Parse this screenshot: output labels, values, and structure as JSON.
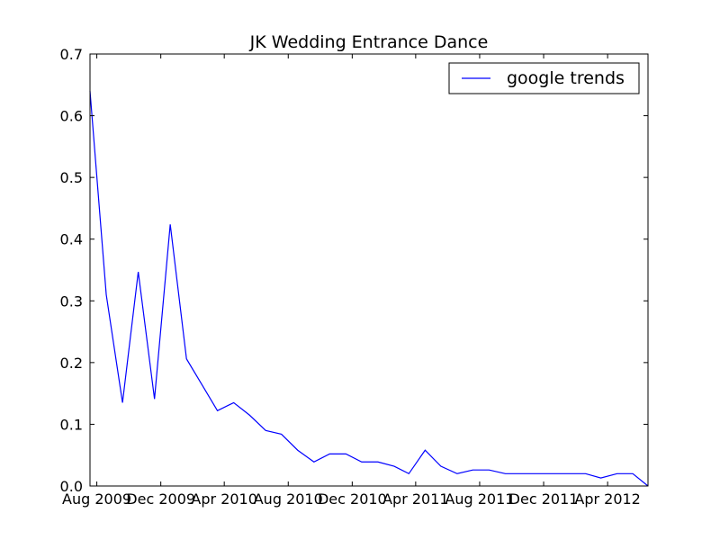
{
  "chart_data": {
    "type": "line",
    "title": "JK Wedding Entrance Dance",
    "xlabel": "",
    "ylabel": "",
    "x_range": [
      "2009-07-19",
      "2012-06-17"
    ],
    "ylim": [
      0.0,
      0.7
    ],
    "y_ticks": [
      0.0,
      0.1,
      0.2,
      0.3,
      0.4,
      0.5,
      0.6,
      0.7
    ],
    "y_tick_labels": [
      "0.0",
      "0.1",
      "0.2",
      "0.3",
      "0.4",
      "0.5",
      "0.6",
      "0.7"
    ],
    "x_ticks": [
      "2009-08-01",
      "2009-12-01",
      "2010-04-01",
      "2010-08-01",
      "2010-12-01",
      "2011-04-01",
      "2011-08-01",
      "2011-12-01",
      "2012-04-01"
    ],
    "x_tick_labels": [
      "Aug 2009",
      "Dec 2009",
      "Apr 2010",
      "Aug 2010",
      "Dec 2010",
      "Apr 2011",
      "Aug 2011",
      "Dec 2011",
      "Apr 2012"
    ],
    "grid": false,
    "legend_position": "top-right",
    "series": [
      {
        "name": "google trends",
        "color": "#0000ff",
        "x": [
          "2009-07-19",
          "2009-08-19",
          "2009-09-19",
          "2009-10-19",
          "2009-11-19",
          "2009-12-19",
          "2010-01-19",
          "2010-02-19",
          "2010-03-19",
          "2010-04-19",
          "2010-05-19",
          "2010-06-19",
          "2010-07-19",
          "2010-08-19",
          "2010-09-19",
          "2010-10-19",
          "2010-11-19",
          "2010-12-19",
          "2011-01-19",
          "2011-02-19",
          "2011-03-19",
          "2011-04-19",
          "2011-05-19",
          "2011-06-19",
          "2011-07-19",
          "2011-08-19",
          "2011-09-19",
          "2011-10-19",
          "2011-11-19",
          "2011-12-19",
          "2012-01-19",
          "2012-02-19",
          "2012-03-19",
          "2012-04-19",
          "2012-05-19",
          "2012-06-17"
        ],
        "y": [
          0.64,
          0.31,
          0.135,
          0.347,
          0.141,
          0.424,
          0.206,
          0.162,
          0.122,
          0.135,
          0.115,
          0.09,
          0.084,
          0.058,
          0.039,
          0.052,
          0.052,
          0.039,
          0.039,
          0.032,
          0.02,
          0.058,
          0.032,
          0.02,
          0.026,
          0.026,
          0.02,
          0.02,
          0.02,
          0.02,
          0.02,
          0.02,
          0.013,
          0.02,
          0.02,
          0.0
        ]
      }
    ]
  }
}
